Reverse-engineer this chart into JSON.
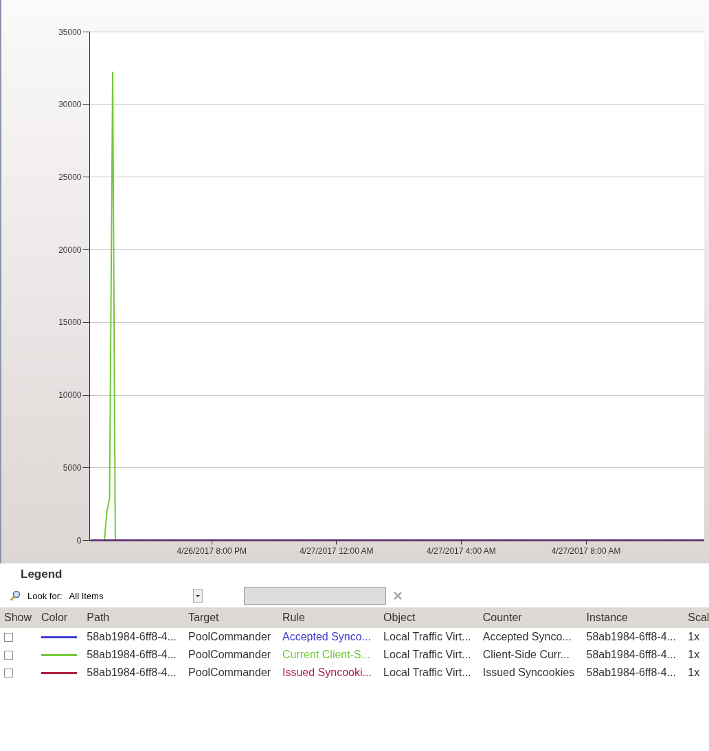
{
  "chart_data": {
    "type": "line",
    "legend_title": "Legend",
    "legend": "bottom",
    "grid": "y",
    "x": [
      "2017-04-26T16:10",
      "2017-04-26T16:34",
      "2017-04-26T16:39",
      "2017-04-26T16:44",
      "2017-04-26T16:50",
      "2017-04-26T16:55",
      "2017-04-27T11:48"
    ],
    "xlim": [
      "2017-04-26T16:05",
      "2017-04-27T11:48"
    ],
    "xticks": [
      {
        "value": "2017-04-26T20:00",
        "label": "4/26/2017 8:00 PM"
      },
      {
        "value": "2017-04-27T00:00",
        "label": "4/27/2017 12:00 AM"
      },
      {
        "value": "2017-04-27T04:00",
        "label": "4/27/2017 4:00 AM"
      },
      {
        "value": "2017-04-27T08:00",
        "label": "4/27/2017 8:00 AM"
      }
    ],
    "ylim": [
      0,
      35000
    ],
    "yticks": [
      0,
      5000,
      10000,
      15000,
      20000,
      25000,
      30000,
      35000
    ],
    "series": [
      {
        "name": "Current Client-S...",
        "color": "#72c83a",
        "values": [
          0,
          0,
          2000,
          2900,
          32200,
          0,
          0
        ]
      },
      {
        "name": "Issued Syncooki...",
        "color": "#b02040",
        "values": [
          0,
          0,
          0,
          0,
          0,
          0,
          0
        ]
      },
      {
        "name": "Accepted Synco...",
        "color": "#3a3acf",
        "line_style": "dashed",
        "values": [
          0,
          0,
          0,
          0,
          0,
          0,
          0
        ]
      }
    ],
    "annotations": [
      "Look for:",
      "All Items",
      "Show",
      "Color",
      "Path",
      "Target",
      "Rule",
      "Object",
      "Counter",
      "Instance",
      "Scal",
      "58ab1984-6ff8-4...",
      "PoolCommander",
      "Local Traffic Virt...",
      "Accepted Synco...",
      "58ab1984-6ff8-4...",
      "1x",
      "58ab1984-6ff8-4...",
      "PoolCommander",
      "Local Traffic Virt...",
      "Client-Side Curr...",
      "58ab1984-6ff8-4...",
      "1x",
      "58ab1984-6ff8-4...",
      "PoolCommander",
      "Local Traffic Virt...",
      "Issued Syncookies",
      "58ab1984-6ff8-4...",
      "1x"
    ]
  }
}
